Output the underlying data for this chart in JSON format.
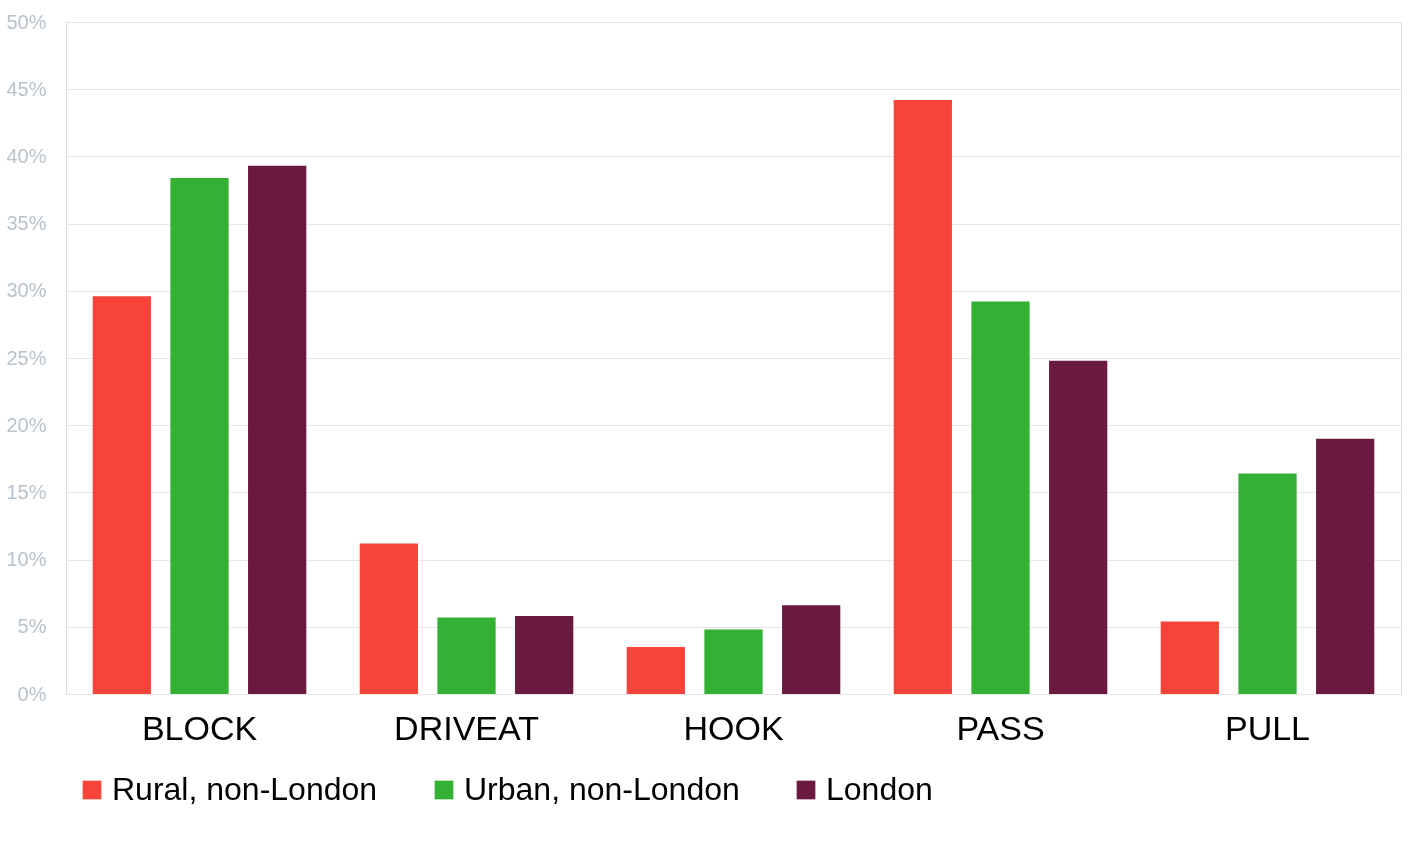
{
  "chart_data": {
    "type": "bar",
    "categories": [
      "BLOCK",
      "DRIVEAT",
      "HOOK",
      "PASS",
      "PULL"
    ],
    "series": [
      {
        "name": "Rural, non-London",
        "color": "#f8433b",
        "values": [
          29.6,
          11.2,
          3.5,
          44.2,
          5.4
        ]
      },
      {
        "name": "Urban, non-London",
        "color": "#34b034",
        "values": [
          38.4,
          5.7,
          4.8,
          29.2,
          16.4
        ]
      },
      {
        "name": "London",
        "color": "#6b1a3f",
        "values": [
          39.3,
          5.8,
          6.6,
          24.8,
          19.0
        ]
      }
    ],
    "ylim": [
      0,
      50
    ],
    "yticks": [
      {
        "value": 0,
        "label": "0%"
      },
      {
        "value": 5,
        "label": "5%"
      },
      {
        "value": 10,
        "label": "10%"
      },
      {
        "value": 15,
        "label": "15%"
      },
      {
        "value": 20,
        "label": "20%"
      },
      {
        "value": 25,
        "label": "25%"
      },
      {
        "value": 30,
        "label": "30%"
      },
      {
        "value": 35,
        "label": "35%"
      },
      {
        "value": 40,
        "label": "40%"
      },
      {
        "value": 45,
        "label": "45%"
      },
      {
        "value": 50,
        "label": "50%"
      }
    ],
    "grid": "y",
    "legend": "bottom"
  }
}
